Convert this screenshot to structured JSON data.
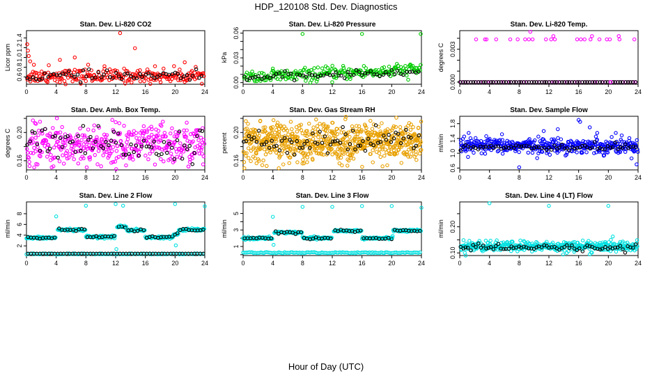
{
  "figure": {
    "title": "HDP_120108  Std. Dev. Diagnostics",
    "xlabel": "Hour of Day (UTC)"
  },
  "chart_data": [
    {
      "id": "co2",
      "type": "scatter",
      "title": "Stan. Dev. Li-820 CO2",
      "ylabel": "Licor ppm",
      "xlim": [
        0,
        24
      ],
      "xticks": [
        0,
        4,
        8,
        12,
        16,
        20,
        24
      ],
      "ylim": [
        0.45,
        1.55
      ],
      "yticks": [
        0.6,
        0.8,
        1.0,
        1.2,
        1.4
      ],
      "ytick_labels": [
        "0.6",
        "0.8",
        "1.0",
        "1.2",
        "1.4"
      ],
      "series": [
        {
          "color": "#ff0000",
          "base": 0.62,
          "spread": 0.07,
          "n": 240
        },
        {
          "color": "#000000",
          "base": 0.62,
          "spread": 0.05,
          "n": 60
        }
      ],
      "outliers": [
        [
          0.1,
          1.27
        ],
        [
          0.2,
          1.14
        ],
        [
          0.3,
          1.03
        ],
        [
          0.5,
          0.92
        ],
        [
          1.0,
          0.85
        ],
        [
          3.0,
          0.84
        ],
        [
          4.5,
          0.95
        ],
        [
          6.5,
          1.0
        ],
        [
          8.3,
          0.85
        ],
        [
          10.5,
          0.82
        ],
        [
          12.6,
          1.5
        ],
        [
          14.6,
          1.19
        ],
        [
          17.3,
          0.82
        ],
        [
          21.3,
          0.9
        ],
        [
          23.6,
          0.46
        ]
      ]
    },
    {
      "id": "pressure",
      "type": "scatter",
      "title": "Stan. Dev. Li-820 Pressure",
      "ylabel": "kPa",
      "xlim": [
        0,
        24
      ],
      "xticks": [
        0,
        4,
        8,
        12,
        16,
        20,
        24
      ],
      "ylim": [
        -0.002,
        0.063
      ],
      "yticks": [
        0.0,
        0.01,
        0.02,
        0.03,
        0.04,
        0.05,
        0.06
      ],
      "ytick_labels": [
        "0.00",
        "",
        "",
        "0.03",
        "",
        "",
        "0.06"
      ],
      "series": [
        {
          "color": "#00cc00",
          "base": 0.006,
          "spread": 0.004,
          "n": 240,
          "trend": 0.0004
        },
        {
          "color": "#000000",
          "base": 0.006,
          "spread": 0.002,
          "n": 60,
          "trend": 0.0003
        }
      ],
      "outliers": [
        [
          8.0,
          0.059
        ],
        [
          16.0,
          0.059
        ],
        [
          23.9,
          0.059
        ],
        [
          4.0,
          0.017
        ],
        [
          20.5,
          0.018
        ],
        [
          22.5,
          0.022
        ]
      ]
    },
    {
      "id": "temp",
      "type": "scatter",
      "title": "Stan. Dev. Li-820 Temp.",
      "ylabel": "degrees C",
      "xlim": [
        0,
        24
      ],
      "xticks": [
        0,
        4,
        8,
        12,
        16,
        20,
        24
      ],
      "ylim": [
        -0.0002,
        0.0047
      ],
      "yticks": [
        0.0,
        0.001,
        0.002,
        0.003,
        0.004
      ],
      "ytick_labels": [
        "0.000",
        "",
        "",
        "0.003",
        ""
      ],
      "series": [
        {
          "color": "#ff00ff",
          "base": 0.0,
          "spread": 0.0,
          "n": 70
        },
        {
          "color": "#000000",
          "base": 0.0,
          "spread": 0.0,
          "n": 70
        }
      ],
      "outliers": [
        [
          2.2,
          0.0039
        ],
        [
          3.4,
          0.0039
        ],
        [
          3.6,
          0.0039
        ],
        [
          4.9,
          0.0039
        ],
        [
          6.8,
          0.0039
        ],
        [
          7.8,
          0.0039
        ],
        [
          8.8,
          0.0039
        ],
        [
          9.3,
          0.0039
        ],
        [
          9.8,
          0.0039
        ],
        [
          11.6,
          0.0039
        ],
        [
          12.3,
          0.0039
        ],
        [
          12.8,
          0.0039
        ],
        [
          15.8,
          0.0039
        ],
        [
          16.3,
          0.0039
        ],
        [
          16.8,
          0.0039
        ],
        [
          17.6,
          0.0039
        ],
        [
          18.8,
          0.0039
        ],
        [
          19.8,
          0.0039
        ],
        [
          20.2,
          0.0039
        ],
        [
          21.5,
          0.0039
        ],
        [
          23.5,
          0.0039
        ],
        [
          9.5,
          0.0046
        ],
        [
          12.6,
          0.0042
        ],
        [
          17.8,
          0.0042
        ],
        [
          21.4,
          0.0042
        ],
        [
          20.3,
          0.0
        ]
      ]
    },
    {
      "id": "ambtemp",
      "type": "scatter",
      "title": "Stan. Dev. Amb. Box Temp.",
      "ylabel": "degrees C",
      "xlim": [
        0,
        24
      ],
      "xticks": [
        0,
        4,
        8,
        12,
        16,
        20,
        24
      ],
      "ylim": [
        0.147,
        0.223
      ],
      "yticks": [
        0.16,
        0.18,
        0.2,
        0.22
      ],
      "ytick_labels": [
        "0.16",
        "",
        "0.20",
        ""
      ],
      "series": [
        {
          "color": "#ff00ff",
          "base": 0.182,
          "spread": 0.015,
          "n": 420
        },
        {
          "color": "#000000",
          "base": 0.182,
          "spread": 0.012,
          "n": 70
        }
      ],
      "outliers": []
    },
    {
      "id": "rh",
      "type": "scatter",
      "title": "Stan. Dev. Gas Stream RH",
      "ylabel": "percent",
      "xlim": [
        0,
        24
      ],
      "xticks": [
        0,
        4,
        8,
        12,
        16,
        20,
        24
      ],
      "ylim": [
        0.147,
        0.223
      ],
      "yticks": [
        0.16,
        0.18,
        0.2,
        0.22
      ],
      "ytick_labels": [
        "0.16",
        "",
        "0.20",
        ""
      ],
      "series": [
        {
          "color": "#e8a000",
          "base": 0.186,
          "spread": 0.014,
          "n": 700
        },
        {
          "color": "#000000",
          "base": 0.186,
          "spread": 0.01,
          "n": 70
        }
      ],
      "outliers": []
    },
    {
      "id": "sampleflow",
      "type": "scatter",
      "title": "Stan. Dev. Sample Flow",
      "ylabel": "ml/min",
      "xlim": [
        0,
        24
      ],
      "xticks": [
        0,
        4,
        8,
        12,
        16,
        20,
        24
      ],
      "ylim": [
        0.55,
        2.0
      ],
      "yticks": [
        0.6,
        1.0,
        1.4,
        1.8
      ],
      "ytick_labels": [
        "0.6",
        "1.0",
        "1.4",
        "1.8"
      ],
      "series": [
        {
          "color": "#0000ff",
          "base": 1.2,
          "spread": 0.1,
          "n": 420
        },
        {
          "color": "#000000",
          "base": 1.17,
          "spread": 0.05,
          "n": 70
        }
      ],
      "outliers": [
        [
          8.0,
          0.62
        ],
        [
          16.0,
          1.9
        ],
        [
          16.2,
          1.85
        ],
        [
          23.8,
          0.7
        ],
        [
          1.2,
          1.55
        ],
        [
          11.3,
          1.6
        ],
        [
          13.2,
          1.65
        ],
        [
          17.5,
          1.7
        ],
        [
          21.0,
          1.55
        ],
        [
          18.5,
          1.55
        ]
      ]
    },
    {
      "id": "line2",
      "type": "scatter",
      "title": "Stan. Dev. Line 2 Flow",
      "ylabel": "ml/min",
      "xlim": [
        0,
        24
      ],
      "xticks": [
        0,
        4,
        8,
        12,
        16,
        20,
        24
      ],
      "ylim": [
        0.2,
        10.2
      ],
      "yticks": [
        2,
        4,
        6,
        8
      ],
      "ytick_labels": [
        "2",
        "4",
        "6",
        "8"
      ],
      "series": [
        {
          "color": "#00e0e0",
          "base": 0.5,
          "spread": 0.0,
          "n": 120
        }
      ],
      "line2_segments": [
        [
          0,
          4,
          3.5
        ],
        [
          4.2,
          8,
          5.0
        ],
        [
          8,
          12,
          3.7
        ],
        [
          12.2,
          13.5,
          5.6
        ],
        [
          13.5,
          16,
          4.9
        ],
        [
          16,
          19.8,
          3.6
        ],
        [
          19.8,
          20.5,
          4.2
        ],
        [
          20.5,
          24,
          5.0
        ]
      ],
      "baseline_black": 0.55,
      "outliers": [
        [
          4.0,
          7.5
        ],
        [
          8.0,
          9.5
        ],
        [
          12.0,
          9.8
        ],
        [
          13.0,
          9.5
        ],
        [
          20.0,
          9.8
        ],
        [
          24.0,
          9.4
        ],
        [
          12.1,
          1.4
        ],
        [
          20.1,
          2.1
        ],
        [
          12.6,
          5.8
        ]
      ]
    },
    {
      "id": "line3",
      "type": "scatter",
      "title": "Stan. Dev. Line 3 Flow",
      "ylabel": "ml/min",
      "xlim": [
        0,
        24
      ],
      "xticks": [
        0,
        4,
        8,
        12,
        16,
        20,
        24
      ],
      "ylim": [
        -0.1,
        6.4
      ],
      "yticks": [
        0,
        1,
        2,
        3,
        4,
        5
      ],
      "ytick_labels": [
        "",
        "1",
        "",
        "3",
        "",
        "5"
      ],
      "series": [
        {
          "color": "#00e0e0",
          "base": 0.25,
          "spread": 0.0,
          "n": 120
        }
      ],
      "line3_segments": [
        [
          0,
          4,
          2.0
        ],
        [
          4.2,
          8,
          2.7
        ],
        [
          8,
          12,
          2.0
        ],
        [
          12.2,
          16,
          2.9
        ],
        [
          16,
          20.2,
          2.0
        ],
        [
          20.2,
          24,
          2.9
        ]
      ],
      "outliers": [
        [
          4.0,
          4.6
        ],
        [
          8.0,
          5.8
        ],
        [
          12.0,
          5.8
        ],
        [
          16.0,
          5.9
        ],
        [
          20.0,
          5.9
        ],
        [
          24.0,
          5.7
        ],
        [
          4.1,
          1.2
        ],
        [
          20.1,
          2.1
        ]
      ]
    },
    {
      "id": "line4",
      "type": "scatter",
      "title": "Stan. Dev. Line 4 (LT) Flow",
      "ylabel": "ml/min",
      "xlim": [
        0,
        24
      ],
      "xticks": [
        0,
        4,
        8,
        12,
        16,
        20,
        24
      ],
      "ylim": [
        0.09,
        0.295
      ],
      "yticks": [
        0.1,
        0.15,
        0.2,
        0.25
      ],
      "ytick_labels": [
        "0.10",
        "",
        "0.20",
        ""
      ],
      "series": [
        {
          "color": "#00e0e0",
          "base": 0.125,
          "spread": 0.01,
          "n": 420
        },
        {
          "color": "#000000",
          "base": 0.12,
          "spread": 0.006,
          "n": 70
        }
      ],
      "outliers": [
        [
          4.0,
          0.29
        ],
        [
          12.0,
          0.28
        ],
        [
          20.0,
          0.28
        ],
        [
          0.8,
          0.09
        ]
      ]
    }
  ]
}
